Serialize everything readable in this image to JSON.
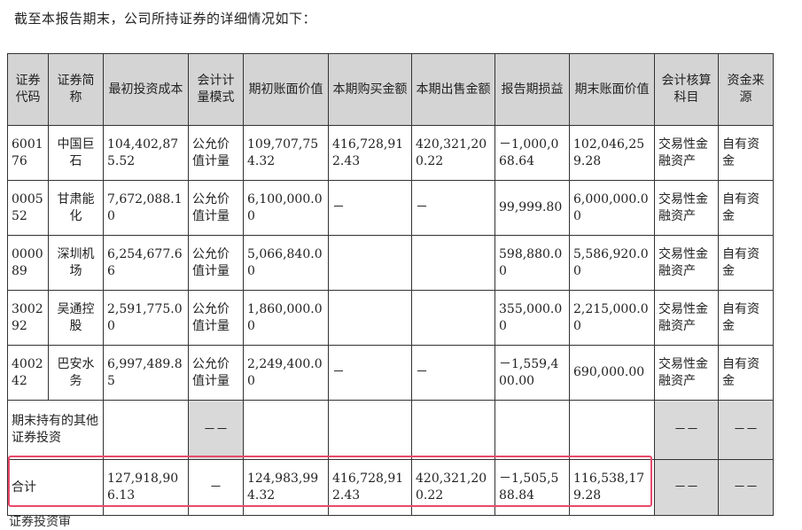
{
  "intro": "截至本报告期末，公司所持证券的详细情况如下：",
  "headers": [
    "证券代码",
    "证券简称",
    "最初投资成本",
    "会计计量模式",
    "期初账面价值",
    "本期购买金额",
    "本期出售金额",
    "报告期损益",
    "期末账面价值",
    "会计核算科目",
    "资金来源"
  ],
  "rows": [
    {
      "code": "600176",
      "name": "中国巨石",
      "cost": "104,402,875.52",
      "mode": "公允价值计量",
      "begin": "109,707,754.32",
      "buy": "416,728,912.43",
      "sell": "420,321,200.22",
      "pl": "－1,000,068.64",
      "end": "102,046,259.28",
      "account": "交易性金融资产",
      "source": "自有资金"
    },
    {
      "code": "000552",
      "name": "甘肃能化",
      "cost": "7,672,088.10",
      "mode": "公允价值计量",
      "begin": "6,100,000.00",
      "buy": "－",
      "sell": "－",
      "pl": "99,999.80",
      "end": "6,000,000.00",
      "account": "交易性金融资产",
      "source": "自有资金"
    },
    {
      "code": "000089",
      "name": "深圳机场",
      "cost": "6,254,677.66",
      "mode": "公允价值计量",
      "begin": "5,066,840.00",
      "buy": "",
      "sell": "",
      "pl": "598,880.00",
      "end": "5,586,920.00",
      "account": "交易性金融资产",
      "source": "自有资金"
    },
    {
      "code": "300292",
      "name": "吴通控股",
      "cost": "2,591,775.00",
      "mode": "公允价值计量",
      "begin": "1,860,000.00",
      "buy": "",
      "sell": "",
      "pl": "355,000.00",
      "end": "2,215,000.00",
      "account": "交易性金融资产",
      "source": "自有资金"
    },
    {
      "code": "400242",
      "name": "巴安水务",
      "cost": "6,997,489.85",
      "mode": "公允价值计量",
      "begin": "2,249,400.00",
      "buy": "－",
      "sell": "－",
      "pl": "－1,559,400.00",
      "end": "690,000.00",
      "account": "交易性金融资产",
      "source": "自有资金"
    }
  ],
  "other": {
    "label": "期末持有的其他证券投资",
    "mode": "－－",
    "account": "－－",
    "source": "－－"
  },
  "total": {
    "label": "合计",
    "cost": "127,918,906.13",
    "mode": "－",
    "begin": "124,983,994.32",
    "buy": "416,728,912.43",
    "sell": "420,321,200.22",
    "pl": "－1,505,588.84",
    "end": "116,538,179.28",
    "account": "－－",
    "source": "－－"
  },
  "cut_text": "证券投资审"
}
